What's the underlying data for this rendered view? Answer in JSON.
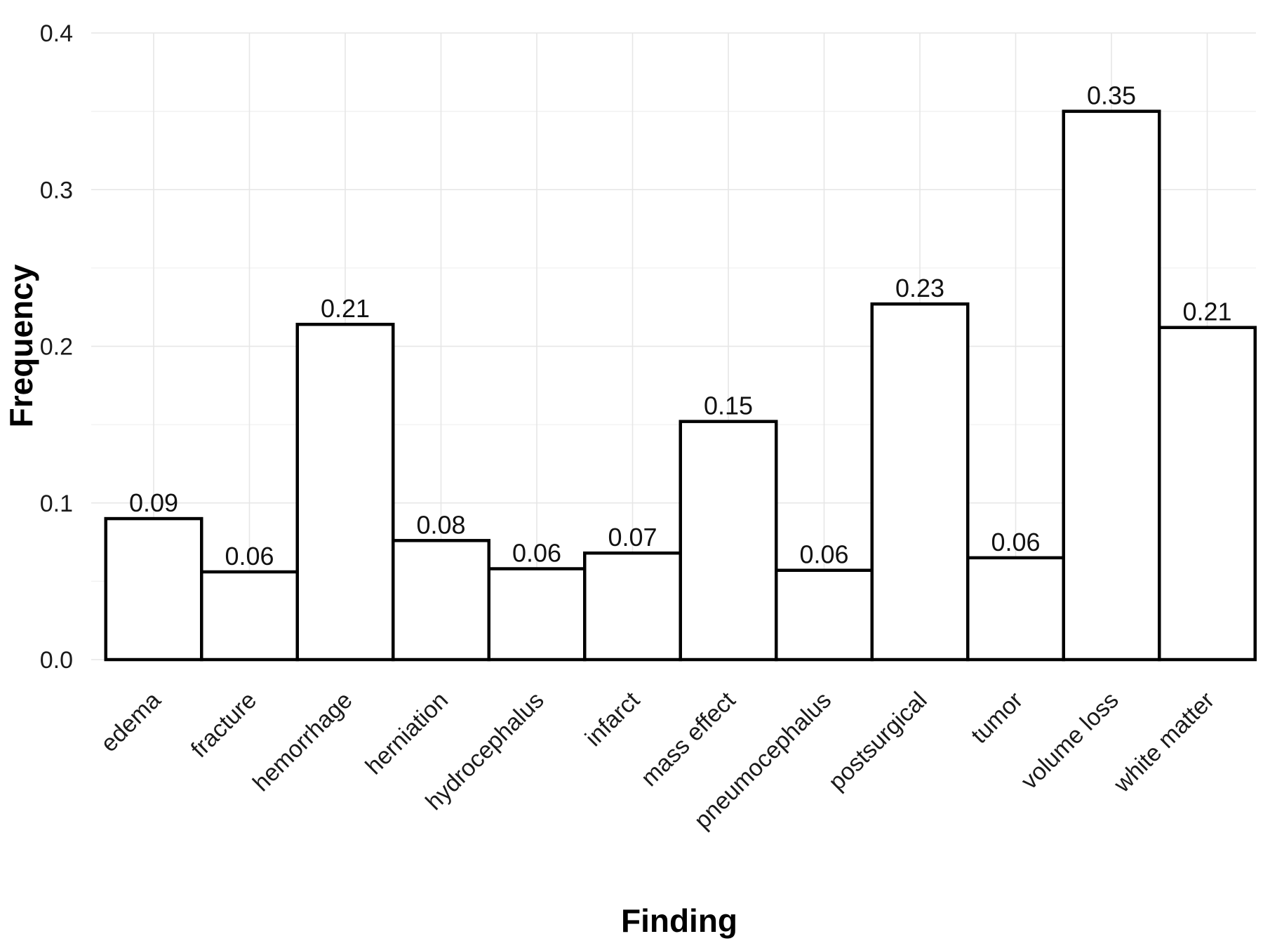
{
  "chart_data": {
    "type": "bar",
    "xlabel": "Finding",
    "ylabel": "Frequency",
    "categories": [
      "edema",
      "fracture",
      "hemorrhage",
      "herniation",
      "hydrocephalus",
      "infarct",
      "mass effect",
      "pneumocephalus",
      "postsurgical",
      "tumor",
      "volume loss",
      "white matter"
    ],
    "values": [
      0.09,
      0.056,
      0.214,
      0.076,
      0.058,
      0.068,
      0.152,
      0.057,
      0.227,
      0.065,
      0.35,
      0.212
    ],
    "data_labels": [
      "0.09",
      "0.06",
      "0.21",
      "0.08",
      "0.06",
      "0.07",
      "0.15",
      "0.06",
      "0.23",
      "0.06",
      "0.35",
      "0.21"
    ],
    "yticks": [
      0,
      0.1,
      0.2,
      0.3,
      0.4
    ],
    "ytick_labels": [
      "0.0",
      "0.1",
      "0.2",
      "0.3",
      "0.4"
    ],
    "ylim": [
      0,
      0.4
    ],
    "grid": true,
    "bar_fill": "#ffffff",
    "bar_edge": "#000000"
  }
}
